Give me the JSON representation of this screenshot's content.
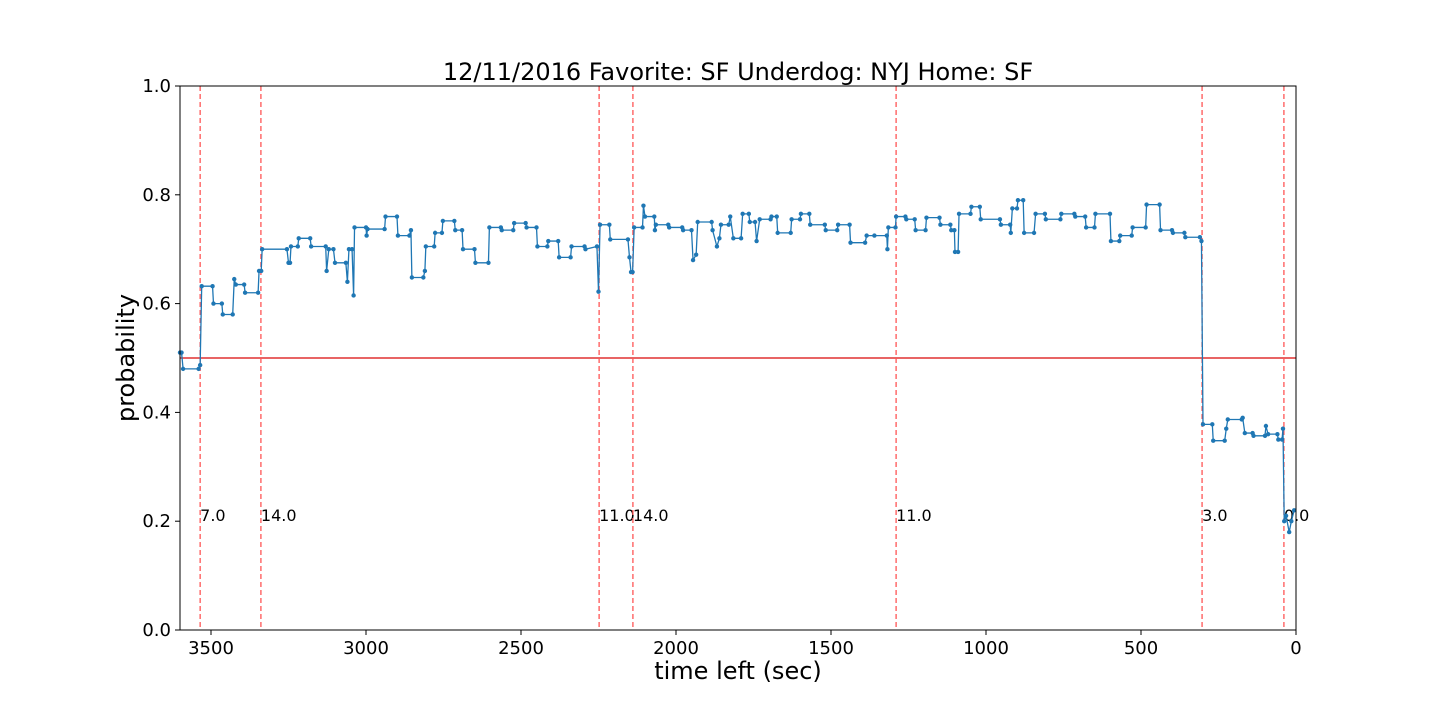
{
  "chart_data": {
    "type": "line",
    "title": "12/11/2016 Favorite: SF Underdog: NYJ Home: SF",
    "x_label": "time left (sec)",
    "y_label": "probability",
    "xlim": [
      3600,
      0
    ],
    "ylim": [
      0,
      1
    ],
    "xticks": [
      3500,
      3000,
      2500,
      2000,
      1500,
      1000,
      500,
      0
    ],
    "yticks": [
      {
        "value": 0,
        "label": "0.0"
      },
      {
        "value": 0.2,
        "label": "0.2"
      },
      {
        "value": 0.4,
        "label": "0.4"
      },
      {
        "value": 0.6,
        "label": "0.6"
      },
      {
        "value": 0.8,
        "label": "0.8"
      },
      {
        "value": 1,
        "label": "1.0"
      }
    ],
    "hline": {
      "value": 0.5,
      "color": "#e03030"
    },
    "vlines": {
      "color": "#ff5555",
      "x": [
        3535,
        3339,
        2248,
        2139,
        1290,
        303,
        39
      ],
      "labels": [
        "7.0",
        "14.0",
        "11.0",
        "14.0",
        "11.0",
        "3.0",
        "0.0"
      ]
    },
    "x": [
      3600,
      3595,
      3590,
      3540,
      3535,
      3530,
      3495,
      3492,
      3465,
      3462,
      3430,
      3425,
      3420,
      3393,
      3390,
      3348,
      3345,
      3338,
      3335,
      3255,
      3250,
      3245,
      3242,
      3220,
      3217,
      3180,
      3177,
      3130,
      3127,
      3120,
      3105,
      3100,
      3065,
      3060,
      3055,
      3045,
      3040,
      3037,
      3000,
      2998,
      2995,
      2940,
      2937,
      2900,
      2897,
      2860,
      2855,
      2852,
      2815,
      2810,
      2807,
      2780,
      2777,
      2755,
      2752,
      2715,
      2712,
      2690,
      2687,
      2650,
      2647,
      2605,
      2602,
      2565,
      2562,
      2525,
      2522,
      2485,
      2482,
      2450,
      2447,
      2415,
      2412,
      2380,
      2377,
      2340,
      2337,
      2295,
      2292,
      2255,
      2250,
      2245,
      2215,
      2212,
      2155,
      2150,
      2145,
      2140,
      2135,
      2108,
      2105,
      2100,
      2070,
      2068,
      2065,
      2025,
      2022,
      1980,
      1977,
      1950,
      1945,
      1935,
      1930,
      1885,
      1882,
      1868,
      1860,
      1855,
      1830,
      1825,
      1815,
      1790,
      1785,
      1765,
      1762,
      1745,
      1740,
      1730,
      1695,
      1692,
      1675,
      1672,
      1630,
      1627,
      1600,
      1597,
      1570,
      1567,
      1520,
      1517,
      1480,
      1477,
      1440,
      1437,
      1390,
      1385,
      1360,
      1320,
      1318,
      1315,
      1292,
      1290,
      1260,
      1257,
      1230,
      1227,
      1195,
      1192,
      1150,
      1147,
      1115,
      1112,
      1102,
      1100,
      1090,
      1087,
      1050,
      1047,
      1020,
      1017,
      955,
      952,
      922,
      920,
      915,
      900,
      897,
      880,
      877,
      845,
      840,
      810,
      807,
      760,
      757,
      715,
      712,
      680,
      677,
      650,
      647,
      600,
      597,
      570,
      567,
      530,
      527,
      485,
      482,
      440,
      437,
      400,
      397,
      360,
      357,
      310,
      305,
      300,
      270,
      267,
      230,
      225,
      220,
      175,
      172,
      165,
      140,
      137,
      100,
      97,
      90,
      60,
      57,
      45,
      42,
      38,
      32,
      22,
      15,
      6
    ],
    "series": [
      {
        "color": "#1f77b4",
        "values": [
          0.51,
          0.51,
          0.48,
          0.48,
          0.487,
          0.632,
          0.632,
          0.6,
          0.6,
          0.58,
          0.58,
          0.645,
          0.635,
          0.635,
          0.62,
          0.62,
          0.66,
          0.66,
          0.7,
          0.7,
          0.675,
          0.675,
          0.705,
          0.705,
          0.72,
          0.72,
          0.705,
          0.705,
          0.66,
          0.7,
          0.7,
          0.675,
          0.675,
          0.64,
          0.7,
          0.7,
          0.615,
          0.74,
          0.74,
          0.725,
          0.737,
          0.737,
          0.76,
          0.76,
          0.725,
          0.725,
          0.735,
          0.648,
          0.648,
          0.66,
          0.705,
          0.705,
          0.73,
          0.73,
          0.752,
          0.752,
          0.735,
          0.735,
          0.7,
          0.7,
          0.675,
          0.675,
          0.74,
          0.74,
          0.735,
          0.735,
          0.748,
          0.748,
          0.74,
          0.74,
          0.705,
          0.705,
          0.715,
          0.715,
          0.685,
          0.685,
          0.705,
          0.705,
          0.7,
          0.705,
          0.622,
          0.745,
          0.745,
          0.718,
          0.718,
          0.685,
          0.658,
          0.658,
          0.74,
          0.74,
          0.78,
          0.76,
          0.76,
          0.735,
          0.745,
          0.745,
          0.74,
          0.74,
          0.735,
          0.735,
          0.68,
          0.69,
          0.75,
          0.75,
          0.735,
          0.705,
          0.72,
          0.745,
          0.745,
          0.76,
          0.72,
          0.72,
          0.765,
          0.765,
          0.75,
          0.75,
          0.715,
          0.755,
          0.755,
          0.76,
          0.76,
          0.73,
          0.73,
          0.755,
          0.755,
          0.765,
          0.765,
          0.745,
          0.745,
          0.735,
          0.735,
          0.745,
          0.745,
          0.712,
          0.712,
          0.725,
          0.725,
          0.725,
          0.7,
          0.74,
          0.74,
          0.76,
          0.76,
          0.755,
          0.755,
          0.735,
          0.735,
          0.758,
          0.758,
          0.745,
          0.745,
          0.735,
          0.735,
          0.695,
          0.695,
          0.765,
          0.765,
          0.778,
          0.778,
          0.755,
          0.755,
          0.745,
          0.745,
          0.73,
          0.775,
          0.775,
          0.79,
          0.79,
          0.73,
          0.73,
          0.765,
          0.765,
          0.755,
          0.755,
          0.765,
          0.765,
          0.76,
          0.76,
          0.74,
          0.74,
          0.765,
          0.765,
          0.715,
          0.715,
          0.725,
          0.725,
          0.74,
          0.74,
          0.782,
          0.782,
          0.735,
          0.735,
          0.73,
          0.73,
          0.722,
          0.722,
          0.715,
          0.378,
          0.378,
          0.348,
          0.348,
          0.37,
          0.387,
          0.387,
          0.39,
          0.362,
          0.362,
          0.357,
          0.357,
          0.375,
          0.36,
          0.36,
          0.35,
          0.35,
          0.37,
          0.2,
          0.21,
          0.18,
          0.2,
          0.22
        ]
      }
    ]
  }
}
